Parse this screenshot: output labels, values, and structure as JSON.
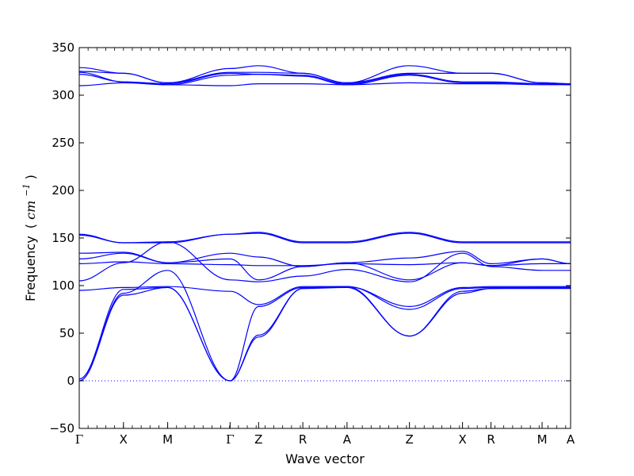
{
  "chart_data": {
    "type": "line",
    "title": "",
    "xlabel": "Wave vector",
    "ylabel": "Frequency",
    "ylabel_unit": "(cm⁻¹)",
    "ylabel_paren_open": "(",
    "ylabel_unit_math": "cm",
    "ylabel_exponent": "−1",
    "ylabel_paren_close": ")",
    "ylim": [
      -50,
      350
    ],
    "yticks": [
      -50,
      0,
      50,
      100,
      150,
      200,
      250,
      300,
      350
    ],
    "ytick_labels": [
      "−50",
      "0",
      "50",
      "100",
      "150",
      "200",
      "250",
      "300",
      "350"
    ],
    "xlim": [
      0,
      10.0
    ],
    "high_symmetry_points": [
      {
        "label": "Γ",
        "x": 0.0
      },
      {
        "label": "X",
        "x": 0.9
      },
      {
        "label": "M",
        "x": 1.8
      },
      {
        "label": "Γ",
        "x": 3.07
      },
      {
        "label": "Z",
        "x": 3.65
      },
      {
        "label": "R",
        "x": 4.55
      },
      {
        "label": "A",
        "x": 5.45
      },
      {
        "label": "Z",
        "x": 6.72
      },
      {
        "label": "X",
        "x": 7.8
      },
      {
        "label": "R",
        "x": 8.38
      },
      {
        "label": "M",
        "x": 9.42
      },
      {
        "label": "A",
        "x": 10.0
      }
    ],
    "zero_line": {
      "y": 0,
      "style": "dotted"
    },
    "line_color": "#0000ff",
    "series": [
      {
        "x": [
          0,
          0.9,
          1.8,
          3.07,
          3.65,
          4.55,
          5.45,
          6.72,
          7.8,
          8.38,
          9.42,
          10.0
        ],
        "y": [
          0,
          90,
          98,
          0,
          46,
          97,
          98,
          47,
          92,
          97,
          97,
          97
        ]
      },
      {
        "x": [
          0,
          0.9,
          1.8,
          3.07,
          3.65,
          4.55,
          5.45,
          6.72,
          7.8,
          8.38,
          9.42,
          10.0
        ],
        "y": [
          0,
          92,
          116,
          0,
          48,
          97,
          99,
          47,
          94,
          97,
          98,
          98
        ]
      },
      {
        "x": [
          0,
          0.9,
          1.8,
          3.07,
          3.65,
          4.55,
          5.45,
          6.72,
          7.8,
          8.38,
          9.42,
          10.0
        ],
        "y": [
          2,
          96,
          98,
          0,
          78,
          98,
          99,
          75,
          97,
          98,
          98,
          98
        ]
      },
      {
        "x": [
          0,
          0.9,
          1.8,
          3.07,
          3.65,
          4.55,
          5.45,
          6.72,
          7.8,
          8.38,
          9.42,
          10.0
        ],
        "y": [
          95,
          98,
          99,
          94,
          80,
          99,
          99,
          78,
          98,
          99,
          99,
          99
        ]
      },
      {
        "x": [
          0,
          0.9,
          1.8,
          3.07,
          3.65,
          4.55,
          5.45,
          6.72,
          7.8,
          8.38,
          9.42,
          10.0
        ],
        "y": [
          105,
          124,
          146,
          106,
          104,
          110,
          117,
          104,
          134,
          120,
          116,
          116
        ]
      },
      {
        "x": [
          0,
          0.9,
          1.8,
          3.07,
          3.65,
          4.55,
          5.45,
          6.72,
          7.8,
          8.38,
          9.42,
          10.0
        ],
        "y": [
          123,
          125,
          123,
          122,
          121,
          121,
          123,
          122,
          124,
          121,
          123,
          123
        ]
      },
      {
        "x": [
          0,
          0.9,
          1.8,
          3.07,
          3.65,
          4.55,
          5.45,
          6.72,
          7.8,
          8.38,
          9.42,
          10.0
        ],
        "y": [
          128,
          134,
          124,
          128,
          106,
          120,
          124,
          106,
          124,
          121,
          128,
          123
        ]
      },
      {
        "x": [
          0,
          0.9,
          1.8,
          3.07,
          3.65,
          4.55,
          5.45,
          6.72,
          7.8,
          8.38,
          9.42,
          10.0
        ],
        "y": [
          134,
          135,
          124,
          134,
          130,
          120,
          124,
          129,
          136,
          123,
          128,
          123
        ]
      },
      {
        "x": [
          0,
          0.9,
          1.8,
          3.07,
          3.65,
          4.55,
          5.45,
          6.72,
          7.8,
          8.38,
          9.42,
          10.0
        ],
        "y": [
          153,
          145,
          145,
          154,
          155,
          145,
          145,
          155,
          145,
          145,
          145,
          145
        ]
      },
      {
        "x": [
          0,
          0.9,
          1.8,
          3.07,
          3.65,
          4.55,
          5.45,
          6.72,
          7.8,
          8.38,
          9.42,
          10.0
        ],
        "y": [
          154,
          145,
          146,
          154,
          156,
          146,
          146,
          156,
          146,
          146,
          146,
          146
        ]
      },
      {
        "x": [
          0,
          0.9,
          1.8,
          3.07,
          3.65,
          4.55,
          5.45,
          6.72,
          7.8,
          8.38,
          9.42,
          10.0
        ],
        "y": [
          310,
          313,
          311,
          310,
          312,
          312,
          311,
          313,
          312,
          312,
          311,
          311
        ]
      },
      {
        "x": [
          0,
          0.9,
          1.8,
          3.07,
          3.65,
          4.55,
          5.45,
          6.72,
          7.8,
          8.38,
          9.42,
          10.0
        ],
        "y": [
          322,
          314,
          311,
          321,
          322,
          320,
          311,
          321,
          313,
          313,
          312,
          311
        ]
      },
      {
        "x": [
          0,
          0.9,
          1.8,
          3.07,
          3.65,
          4.55,
          5.45,
          6.72,
          7.8,
          8.38,
          9.42,
          10.0
        ],
        "y": [
          324,
          314,
          312,
          323,
          322,
          321,
          312,
          322,
          314,
          314,
          312,
          312
        ]
      },
      {
        "x": [
          0,
          0.9,
          1.8,
          3.07,
          3.65,
          4.55,
          5.45,
          6.72,
          7.8,
          8.38,
          9.42,
          10.0
        ],
        "y": [
          325,
          323,
          313,
          324,
          324,
          323,
          313,
          323,
          323,
          323,
          313,
          312
        ]
      },
      {
        "x": [
          0,
          0.9,
          1.8,
          3.07,
          3.65,
          4.55,
          5.45,
          6.72,
          7.8,
          8.38,
          9.42,
          10.0
        ],
        "y": [
          329,
          323,
          313,
          328,
          331,
          323,
          313,
          331,
          323,
          323,
          313,
          312
        ]
      }
    ]
  }
}
